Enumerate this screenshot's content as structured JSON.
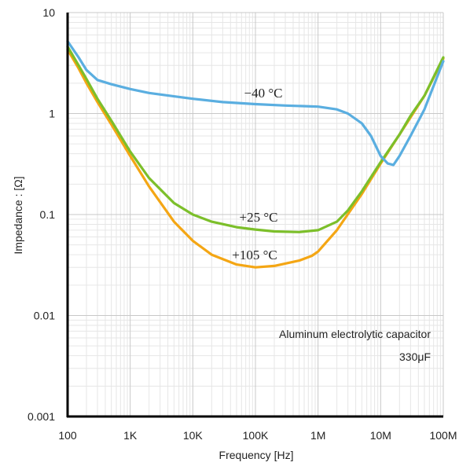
{
  "chart_data": {
    "type": "line",
    "xlabel": "Frequency [Hz]",
    "ylabel": "Impedance : [Ω]",
    "xscale": "log",
    "yscale": "log",
    "xlim": [
      100,
      100000000
    ],
    "ylim": [
      0.001,
      10
    ],
    "grid": true,
    "x_ticks": [
      {
        "value": 100,
        "label": "100"
      },
      {
        "value": 1000,
        "label": "1K"
      },
      {
        "value": 10000,
        "label": "10K"
      },
      {
        "value": 100000,
        "label": "100K"
      },
      {
        "value": 1000000,
        "label": "1M"
      },
      {
        "value": 10000000,
        "label": "10M"
      },
      {
        "value": 100000000,
        "label": "100M"
      }
    ],
    "y_ticks": [
      {
        "value": 0.001,
        "label": "0.001"
      },
      {
        "value": 0.01,
        "label": "0.01"
      },
      {
        "value": 0.1,
        "label": "0.1"
      },
      {
        "value": 1,
        "label": "1"
      },
      {
        "value": 10,
        "label": "10"
      }
    ],
    "series": [
      {
        "name": "−40 °C",
        "color": "#5aaee0",
        "x": [
          100,
          150,
          200,
          300,
          500,
          1000,
          2000,
          5000,
          10000,
          30000,
          100000,
          300000,
          1000000,
          2000000,
          3000000,
          5000000,
          7000000,
          10000000,
          13000000,
          16000000,
          20000000,
          30000000,
          50000000,
          100000000
        ],
        "y": [
          5.2,
          3.6,
          2.7,
          2.15,
          1.95,
          1.75,
          1.6,
          1.48,
          1.4,
          1.3,
          1.24,
          1.2,
          1.17,
          1.1,
          1.0,
          0.8,
          0.6,
          0.38,
          0.32,
          0.31,
          0.38,
          0.6,
          1.1,
          3.3
        ]
      },
      {
        "name": "+25 °C",
        "color": "#7cbf2a",
        "x": [
          100,
          150,
          200,
          300,
          500,
          1000,
          2000,
          5000,
          10000,
          20000,
          50000,
          100000,
          200000,
          500000,
          1000000,
          2000000,
          3000000,
          5000000,
          10000000,
          20000000,
          30000000,
          50000000,
          100000000
        ],
        "y": [
          4.6,
          3.0,
          2.2,
          1.4,
          0.85,
          0.42,
          0.23,
          0.13,
          0.1,
          0.085,
          0.075,
          0.071,
          0.068,
          0.067,
          0.07,
          0.085,
          0.11,
          0.17,
          0.33,
          0.62,
          0.95,
          1.5,
          3.6
        ]
      },
      {
        "name": "+105 °C",
        "color": "#f4a614",
        "x": [
          100,
          150,
          200,
          300,
          500,
          1000,
          2000,
          5000,
          10000,
          20000,
          50000,
          100000,
          200000,
          500000,
          800000,
          1000000,
          2000000,
          5000000,
          10000000,
          20000000,
          50000000,
          100000000
        ],
        "y": [
          4.3,
          2.8,
          2.0,
          1.3,
          0.78,
          0.38,
          0.19,
          0.085,
          0.055,
          0.04,
          0.032,
          0.03,
          0.031,
          0.035,
          0.039,
          0.043,
          0.07,
          0.16,
          0.32,
          0.62,
          1.5,
          3.5
        ]
      }
    ],
    "annotations": {
      "title_line1": "Aluminum electrolytic capacitor",
      "title_line2": "330μF"
    }
  }
}
